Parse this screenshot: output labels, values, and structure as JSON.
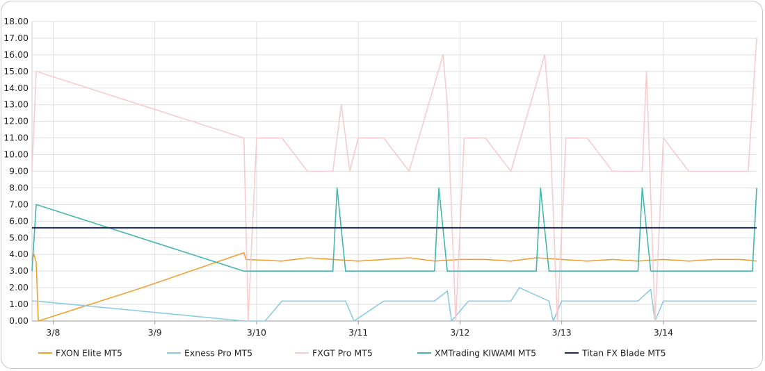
{
  "chart_data": {
    "type": "line",
    "title": "",
    "xlabel": "",
    "ylabel": "",
    "ylim": [
      0,
      18
    ],
    "xlim": [
      "3/7 19:00",
      "3/14 22:00"
    ],
    "yticks": [
      "0.00",
      "1.00",
      "2.00",
      "3.00",
      "4.00",
      "5.00",
      "6.00",
      "7.00",
      "8.00",
      "9.00",
      "10.00",
      "11.00",
      "12.00",
      "13.00",
      "14.00",
      "15.00",
      "16.00",
      "17.00",
      "18.00"
    ],
    "xticks": [
      {
        "label": "3/8",
        "at": "3/8 00:00"
      },
      {
        "label": "3/9",
        "at": "3/9 00:00"
      },
      {
        "label": "3/10",
        "at": "3/10 00:00"
      },
      {
        "label": "3/11",
        "at": "3/11 00:00"
      },
      {
        "label": "3/12",
        "at": "3/12 00:00"
      },
      {
        "label": "3/13",
        "at": "3/13 00:00"
      },
      {
        "label": "3/14",
        "at": "3/14 00:00"
      }
    ],
    "grid": true,
    "legend_position": "bottom",
    "series": [
      {
        "name": "FXON Elite MT5",
        "color": "#f0a030",
        "x": [
          "3/7 19:00",
          "3/7 19:30",
          "3/7 20:00",
          "3/7 20:30",
          "3/8 21:00",
          "3/9 21:00",
          "3/9 21:30",
          "3/10 06:00",
          "3/10 12:00",
          "3/10 18:00",
          "3/11 00:00",
          "3/11 06:00",
          "3/11 12:00",
          "3/11 18:00",
          "3/12 00:00",
          "3/12 06:00",
          "3/12 12:00",
          "3/12 18:00",
          "3/13 00:00",
          "3/13 06:00",
          "3/13 12:00",
          "3/13 18:00",
          "3/14 00:00",
          "3/14 06:00",
          "3/14 12:00",
          "3/14 18:00",
          "3/14 22:00"
        ],
        "y": [
          3.7,
          4.0,
          3.5,
          0.0,
          2.0,
          4.1,
          3.7,
          3.6,
          3.8,
          3.7,
          3.6,
          3.7,
          3.8,
          3.6,
          3.7,
          3.7,
          3.6,
          3.8,
          3.7,
          3.6,
          3.7,
          3.6,
          3.7,
          3.6,
          3.7,
          3.7,
          3.6
        ]
      },
      {
        "name": "Exness Pro MT5",
        "color": "#8ccbe3",
        "x": [
          "3/7 19:00",
          "3/7 20:00",
          "3/9 21:00",
          "3/10 02:00",
          "3/10 06:00",
          "3/10 21:00",
          "3/10 23:00",
          "3/11 06:00",
          "3/11 18:00",
          "3/11 21:00",
          "3/11 22:00",
          "3/12 02:00",
          "3/12 12:00",
          "3/12 14:00",
          "3/12 21:00",
          "3/12 22:00",
          "3/13 00:00",
          "3/13 18:00",
          "3/13 21:00",
          "3/13 22:00",
          "3/14 00:00",
          "3/14 22:00"
        ],
        "y": [
          1.2,
          1.2,
          0.0,
          0.0,
          1.2,
          1.2,
          0.0,
          1.2,
          1.2,
          1.8,
          0.0,
          1.2,
          1.2,
          2.0,
          1.2,
          0.0,
          1.2,
          1.2,
          1.9,
          0.0,
          1.2,
          1.2
        ]
      },
      {
        "name": "FXGT Pro MT5",
        "color": "#f7cccc",
        "x": [
          "3/7 19:00",
          "3/7 20:00",
          "3/9 21:00",
          "3/9 22:00",
          "3/10 00:00",
          "3/10 06:00",
          "3/10 12:00",
          "3/10 18:00",
          "3/10 20:00",
          "3/10 22:00",
          "3/11 00:00",
          "3/11 06:00",
          "3/11 12:00",
          "3/11 20:00",
          "3/11 21:00",
          "3/11 23:00",
          "3/12 01:00",
          "3/12 06:00",
          "3/12 12:00",
          "3/12 20:00",
          "3/12 21:00",
          "3/12 23:00",
          "3/13 01:00",
          "3/13 06:00",
          "3/13 12:00",
          "3/13 19:00",
          "3/13 20:00",
          "3/13 22:00",
          "3/14 00:00",
          "3/14 06:00",
          "3/14 12:00",
          "3/14 20:00",
          "3/14 22:00"
        ],
        "y": [
          9.0,
          15.0,
          11.0,
          0.0,
          11.0,
          11.0,
          9.0,
          9.0,
          13.0,
          9.0,
          11.0,
          11.0,
          9.0,
          16.0,
          13.0,
          0.0,
          11.0,
          11.0,
          9.0,
          16.0,
          13.0,
          0.0,
          11.0,
          11.0,
          9.0,
          9.0,
          15.0,
          0.0,
          11.0,
          9.0,
          9.0,
          9.0,
          17.0
        ]
      },
      {
        "name": "XMTrading KIWAMI MT5",
        "color": "#45b5ad",
        "x": [
          "3/7 19:00",
          "3/7 20:00",
          "3/9 21:00",
          "3/10 06:00",
          "3/10 18:00",
          "3/10 19:00",
          "3/10 21:00",
          "3/11 06:00",
          "3/11 18:00",
          "3/11 19:00",
          "3/11 21:00",
          "3/12 06:00",
          "3/12 18:00",
          "3/12 19:00",
          "3/12 21:00",
          "3/13 06:00",
          "3/13 18:00",
          "3/13 19:00",
          "3/13 21:00",
          "3/14 06:00",
          "3/14 21:00",
          "3/14 22:00"
        ],
        "y": [
          3.0,
          7.0,
          3.0,
          3.0,
          3.0,
          8.0,
          3.0,
          3.0,
          3.0,
          8.0,
          3.0,
          3.0,
          3.0,
          8.0,
          3.0,
          3.0,
          3.0,
          8.0,
          3.0,
          3.0,
          3.0,
          8.0
        ]
      },
      {
        "name": "Titan FX Blade MT5",
        "color": "#1b2a6b",
        "x": [
          "3/7 19:00",
          "3/14 22:00"
        ],
        "y": [
          5.6,
          5.6
        ]
      }
    ]
  }
}
